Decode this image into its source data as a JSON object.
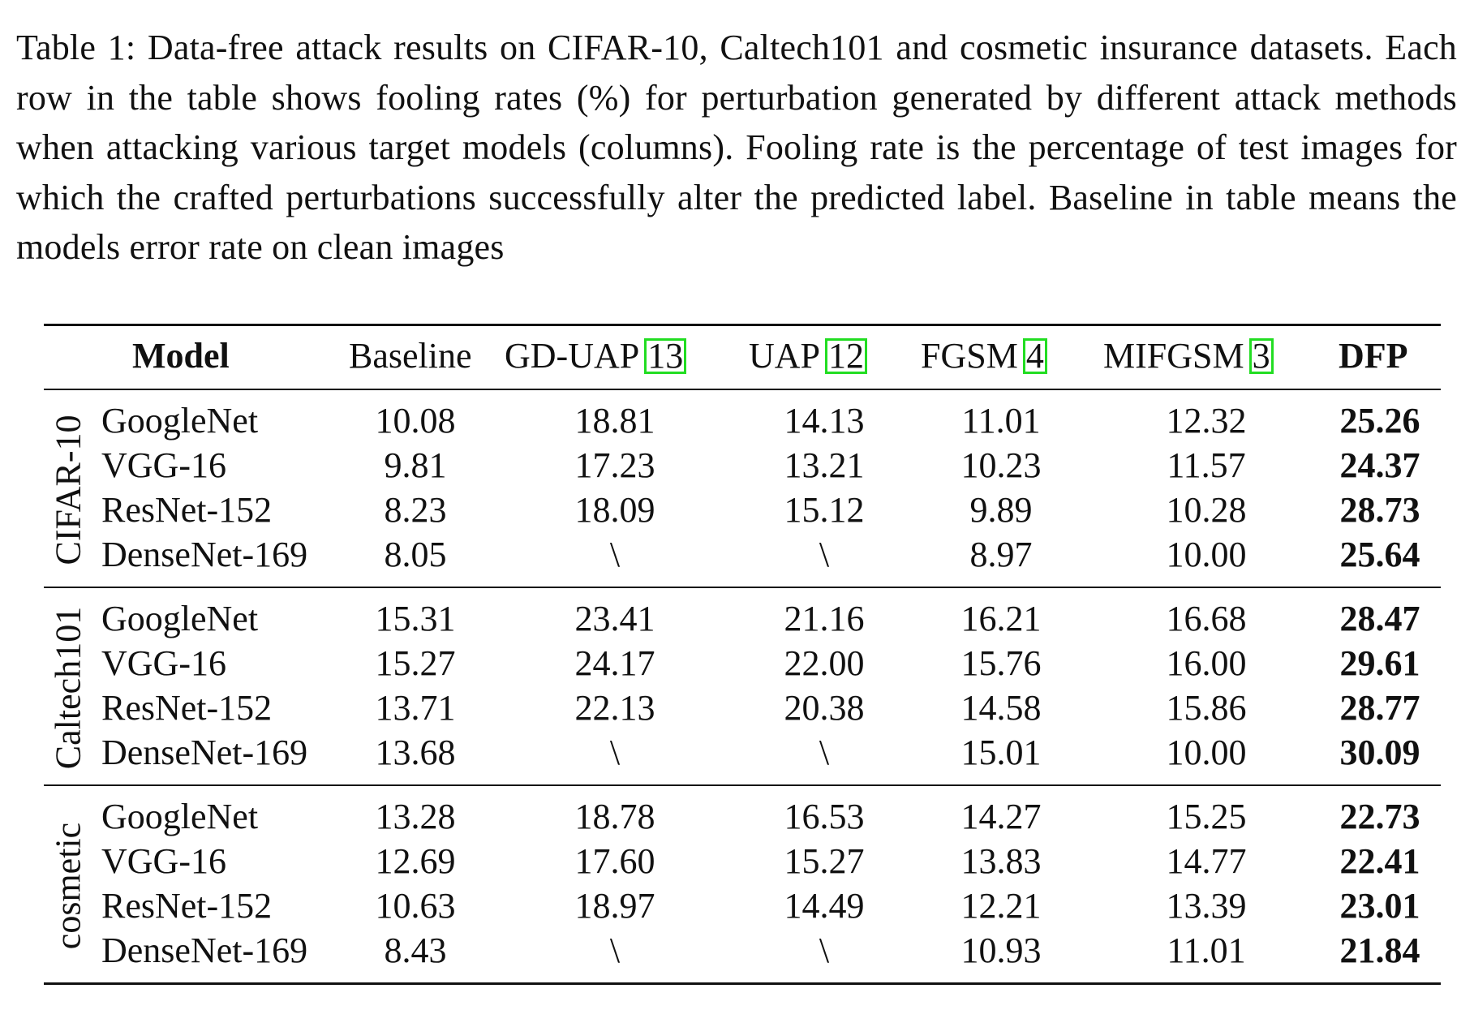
{
  "caption": "Table 1: Data-free attack results on CIFAR-10, Caltech101 and cosmetic insurance datasets. Each row in the table shows fooling rates (%) for perturbation generated by different attack methods when attacking various target models (columns). Fooling rate is the percentage of test images for which the crafted perturbations successfully alter the predicted label. Baseline in table means the models error rate on clean images",
  "header": {
    "model": "Model",
    "baseline": "Baseline",
    "gduap": "GD-UAP",
    "gduap_ref": "13",
    "uap": "UAP",
    "uap_ref": "12",
    "fgsm": "FGSM",
    "fgsm_ref": "4",
    "mifgsm": "MIFGSM",
    "mifgsm_ref": "3",
    "dfp": "DFP"
  },
  "groups": [
    {
      "name": "CIFAR-10",
      "rows": [
        {
          "model": "GoogleNet",
          "baseline": "10.08",
          "gduap": "18.81",
          "uap": "14.13",
          "fgsm": "11.01",
          "mifgsm": "12.32",
          "dfp": "25.26"
        },
        {
          "model": "VGG-16",
          "baseline": "9.81",
          "gduap": "17.23",
          "uap": "13.21",
          "fgsm": "10.23",
          "mifgsm": "11.57",
          "dfp": "24.37"
        },
        {
          "model": "ResNet-152",
          "baseline": "8.23",
          "gduap": "18.09",
          "uap": "15.12",
          "fgsm": "9.89",
          "mifgsm": "10.28",
          "dfp": "28.73"
        },
        {
          "model": "DenseNet-169",
          "baseline": "8.05",
          "gduap": "\\",
          "uap": "\\",
          "fgsm": "8.97",
          "mifgsm": "10.00",
          "dfp": "25.64"
        }
      ]
    },
    {
      "name": "Caltech101",
      "rows": [
        {
          "model": "GoogleNet",
          "baseline": "15.31",
          "gduap": "23.41",
          "uap": "21.16",
          "fgsm": "16.21",
          "mifgsm": "16.68",
          "dfp": "28.47"
        },
        {
          "model": "VGG-16",
          "baseline": "15.27",
          "gduap": "24.17",
          "uap": "22.00",
          "fgsm": "15.76",
          "mifgsm": "16.00",
          "dfp": "29.61"
        },
        {
          "model": "ResNet-152",
          "baseline": "13.71",
          "gduap": "22.13",
          "uap": "20.38",
          "fgsm": "14.58",
          "mifgsm": "15.86",
          "dfp": "28.77"
        },
        {
          "model": "DenseNet-169",
          "baseline": "13.68",
          "gduap": "\\",
          "uap": "\\",
          "fgsm": "15.01",
          "mifgsm": "10.00",
          "dfp": "30.09"
        }
      ]
    },
    {
      "name": "cosmetic",
      "rows": [
        {
          "model": "GoogleNet",
          "baseline": "13.28",
          "gduap": "18.78",
          "uap": "16.53",
          "fgsm": "14.27",
          "mifgsm": "15.25",
          "dfp": "22.73"
        },
        {
          "model": "VGG-16",
          "baseline": "12.69",
          "gduap": "17.60",
          "uap": "15.27",
          "fgsm": "13.83",
          "mifgsm": "14.77",
          "dfp": "22.41"
        },
        {
          "model": "ResNet-152",
          "baseline": "10.63",
          "gduap": "18.97",
          "uap": "14.49",
          "fgsm": "12.21",
          "mifgsm": "13.39",
          "dfp": "23.01"
        },
        {
          "model": "DenseNet-169",
          "baseline": "8.43",
          "gduap": "\\",
          "uap": "\\",
          "fgsm": "10.93",
          "mifgsm": "11.01",
          "dfp": "21.84"
        }
      ]
    }
  ]
}
